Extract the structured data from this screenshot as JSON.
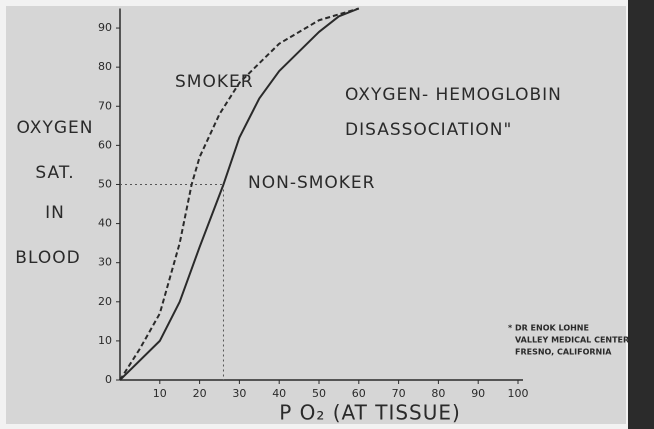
{
  "chart_data": {
    "type": "line",
    "title": [
      "OXYGEN- HEMOGLOBIN",
      "DISASSOCIATION\""
    ],
    "y_label": [
      "OXYGEN",
      "SAT.",
      "IN",
      "BLOOD"
    ],
    "x_label": "P O₂ (AT TISSUE)",
    "credit": [
      "* DR ENOK LOHNE",
      "VALLEY MEDICAL CENTER",
      "FRESNO, CALIFORNIA"
    ],
    "xlim": [
      0,
      100
    ],
    "ylim": [
      0,
      95
    ],
    "xticks": [
      10,
      20,
      30,
      40,
      50,
      60,
      70,
      80,
      90,
      100
    ],
    "yticks": [
      0,
      10,
      20,
      30,
      40,
      50,
      60,
      70,
      80,
      90
    ],
    "guides": {
      "x": 26,
      "y": 50
    },
    "series": [
      {
        "name": "SMOKER",
        "color": "#2a2a2a",
        "dash": true,
        "x": [
          0,
          5,
          10,
          15,
          18,
          20,
          25,
          30,
          40,
          50,
          60
        ],
        "values": [
          0,
          8,
          17,
          35,
          50,
          57,
          68,
          76,
          86,
          92,
          95
        ]
      },
      {
        "name": "NON-SMOKER",
        "color": "#2a2a2a",
        "dash": false,
        "x": [
          0,
          10,
          15,
          20,
          26,
          30,
          35,
          40,
          50,
          55,
          60
        ],
        "values": [
          0,
          10,
          20,
          34,
          50,
          62,
          72,
          79,
          89,
          93,
          95
        ]
      }
    ]
  }
}
